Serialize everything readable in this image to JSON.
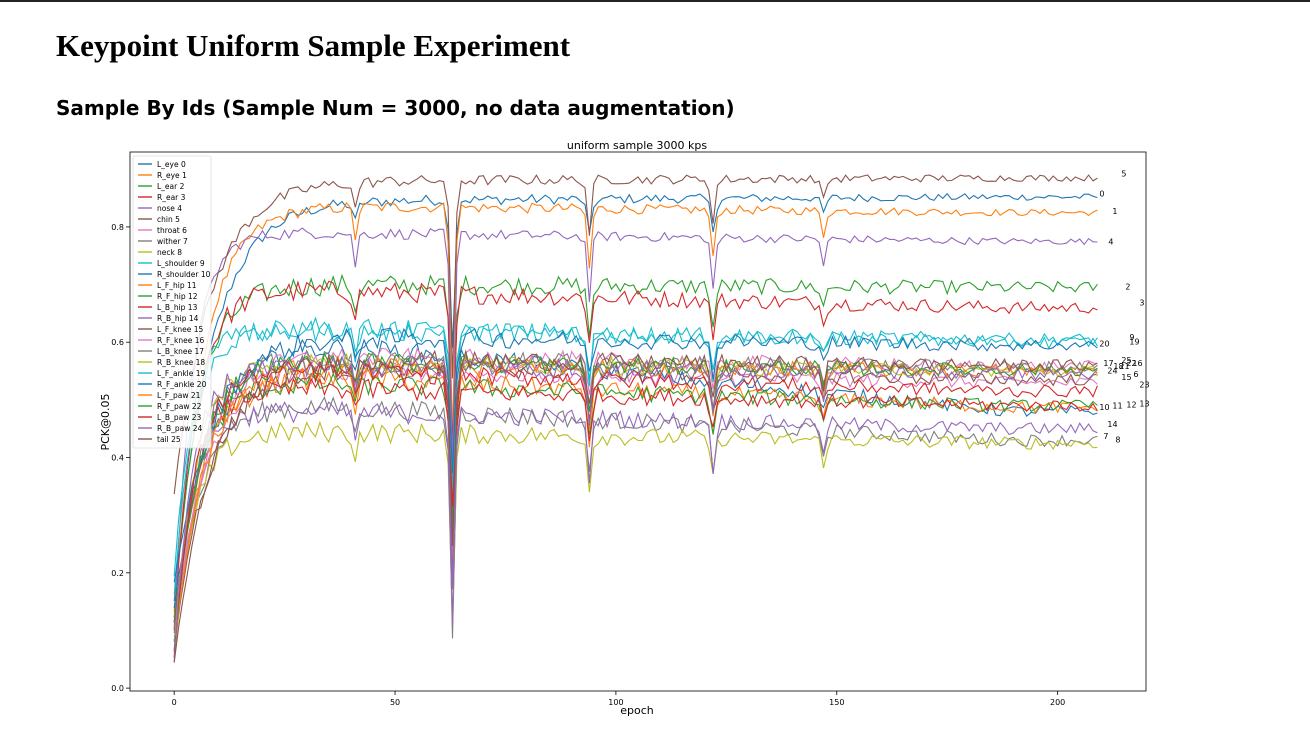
{
  "page": {
    "title": "Keypoint Uniform Sample Experiment",
    "subtitle": "Sample By Ids (Sample Num = 3000, no data augmentation)"
  },
  "chart_data": {
    "type": "line",
    "title": "uniform sample 3000 kps",
    "xlabel": "epoch",
    "ylabel": "PCK@0.05",
    "xlim": [
      -10,
      220
    ],
    "ylim": [
      -0.005,
      0.93
    ],
    "xticks": [
      0,
      50,
      100,
      150,
      200
    ],
    "yticks": [
      0.0,
      0.2,
      0.4,
      0.6,
      0.8
    ],
    "legend_position": "top-left",
    "grid": false,
    "dips": [
      [
        41,
        0.06
      ],
      [
        63,
        0.45
      ],
      [
        94,
        0.12
      ],
      [
        122,
        0.1
      ],
      [
        147,
        0.05
      ]
    ],
    "series": [
      {
        "name": "L_eye 0",
        "label": "0",
        "color": "#1f77b4",
        "start": 0.15,
        "plateau": 0.846,
        "final": 0.852
      },
      {
        "name": "R_eye 1",
        "label": "1",
        "color": "#ff7f0e",
        "start": 0.13,
        "plateau": 0.836,
        "final": 0.825
      },
      {
        "name": "L_ear 2",
        "label": "2",
        "color": "#2ca02c",
        "start": 0.12,
        "plateau": 0.7,
        "final": 0.695
      },
      {
        "name": "R_ear 3",
        "label": "3",
        "color": "#d62728",
        "start": 0.11,
        "plateau": 0.69,
        "final": 0.66
      },
      {
        "name": "nose 4",
        "label": "4",
        "color": "#9467bd",
        "start": 0.1,
        "plateau": 0.79,
        "final": 0.775
      },
      {
        "name": "chin 5",
        "label": "5",
        "color": "#8c564b",
        "start": 0.34,
        "plateau": 0.88,
        "final": 0.885
      },
      {
        "name": "throat 6",
        "label": "6",
        "color": "#e377c2",
        "start": 0.07,
        "plateau": 0.55,
        "final": 0.53
      },
      {
        "name": "wither 7",
        "label": "7",
        "color": "#7f7f7f",
        "start": 0.06,
        "plateau": 0.49,
        "final": 0.43
      },
      {
        "name": "neck 8",
        "label": "8",
        "color": "#bcbd22",
        "start": 0.05,
        "plateau": 0.445,
        "final": 0.425
      },
      {
        "name": "L_shoulder 9",
        "label": "9",
        "color": "#17becf",
        "start": 0.16,
        "plateau": 0.62,
        "final": 0.605
      },
      {
        "name": "R_shoulder 10",
        "label": "10",
        "color": "#1f77b4",
        "start": 0.14,
        "plateau": 0.6,
        "final": 0.48
      },
      {
        "name": "L_F_hip 11",
        "label": "11",
        "color": "#ff7f0e",
        "start": 0.12,
        "plateau": 0.54,
        "final": 0.487
      },
      {
        "name": "R_F_hip 12",
        "label": "12",
        "color": "#2ca02c",
        "start": 0.11,
        "plateau": 0.53,
        "final": 0.49
      },
      {
        "name": "L_B_hip 13",
        "label": "13",
        "color": "#d62728",
        "start": 0.1,
        "plateau": 0.52,
        "final": 0.49
      },
      {
        "name": "R_B_hip 14",
        "label": "14",
        "color": "#9467bd",
        "start": 0.09,
        "plateau": 0.48,
        "final": 0.45
      },
      {
        "name": "L_F_knee 15",
        "label": "15",
        "color": "#8c564b",
        "start": 0.08,
        "plateau": 0.56,
        "final": 0.535
      },
      {
        "name": "R_F_knee 16",
        "label": "16",
        "color": "#e377c2",
        "start": 0.07,
        "plateau": 0.575,
        "final": 0.558
      },
      {
        "name": "L_B_knee 17",
        "label": "17",
        "color": "#7f7f7f",
        "start": 0.08,
        "plateau": 0.57,
        "final": 0.557
      },
      {
        "name": "R_B_knee 18",
        "label": "18",
        "color": "#bcbd22",
        "start": 0.07,
        "plateau": 0.565,
        "final": 0.55
      },
      {
        "name": "L_F_ankle 19",
        "label": "19",
        "color": "#17becf",
        "start": 0.2,
        "plateau": 0.625,
        "final": 0.6
      },
      {
        "name": "R_F_ankle 20",
        "label": "20",
        "color": "#1f77b4",
        "start": 0.18,
        "plateau": 0.61,
        "final": 0.595
      },
      {
        "name": "L_F_paw 21",
        "label": "21",
        "color": "#ff7f0e",
        "start": 0.06,
        "plateau": 0.56,
        "final": 0.55
      },
      {
        "name": "R_F_paw 22",
        "label": "22",
        "color": "#2ca02c",
        "start": 0.06,
        "plateau": 0.565,
        "final": 0.552
      },
      {
        "name": "L_B_paw 23",
        "label": "23",
        "color": "#d62728",
        "start": 0.05,
        "plateau": 0.55,
        "final": 0.515
      },
      {
        "name": "R_B_paw 24",
        "label": "24",
        "color": "#9467bd",
        "start": 0.05,
        "plateau": 0.56,
        "final": 0.545
      },
      {
        "name": "tail 25",
        "label": "25",
        "color": "#8c564b",
        "start": 0.04,
        "plateau": 0.57,
        "final": 0.56
      }
    ],
    "end_labels": [
      {
        "label": "5",
        "y": 0.893
      },
      {
        "label": "0",
        "y": 0.858
      },
      {
        "label": "1",
        "y": 0.828
      },
      {
        "label": "4",
        "y": 0.775
      },
      {
        "label": "2",
        "y": 0.697
      },
      {
        "label": "3",
        "y": 0.669
      },
      {
        "label": "9",
        "y": 0.609
      },
      {
        "label": "19",
        "y": 0.601
      },
      {
        "label": "20",
        "y": 0.598
      },
      {
        "label": "17",
        "y": 0.564
      },
      {
        "label": "25",
        "y": 0.569
      },
      {
        "label": "18",
        "y": 0.559
      },
      {
        "label": "21",
        "y": 0.559
      },
      {
        "label": "22",
        "y": 0.564
      },
      {
        "label": "16",
        "y": 0.564
      },
      {
        "label": "24",
        "y": 0.551
      },
      {
        "label": "6",
        "y": 0.545
      },
      {
        "label": "15",
        "y": 0.54
      },
      {
        "label": "23",
        "y": 0.527
      },
      {
        "label": "10",
        "y": 0.488
      },
      {
        "label": "11",
        "y": 0.49
      },
      {
        "label": "12",
        "y": 0.492
      },
      {
        "label": "13",
        "y": 0.494
      },
      {
        "label": "14",
        "y": 0.458
      },
      {
        "label": "7",
        "y": 0.437
      },
      {
        "label": "8",
        "y": 0.431
      }
    ]
  }
}
